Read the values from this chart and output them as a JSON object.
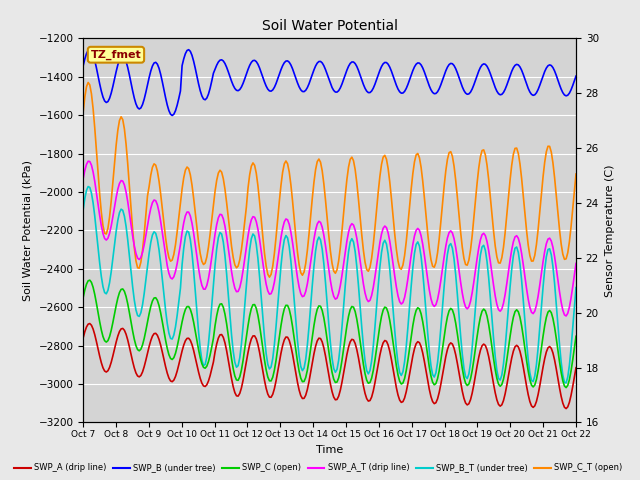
{
  "title": "Soil Water Potential",
  "ylabel_left": "Soil Water Potential (kPa)",
  "ylabel_right": "Sensor Temperature (C)",
  "xlabel": "Time",
  "ylim_left": [
    -3200,
    -1200
  ],
  "ylim_right": [
    16,
    30
  ],
  "background_color": "#e8e8e8",
  "plot_bg_color": "#d4d4d4",
  "x_labels": [
    "Oct 7",
    "Oct 8",
    "Oct 9",
    "Oct 10",
    "Oct 11",
    "Oct 12",
    "Oct 13",
    "Oct 14",
    "Oct 15",
    "Oct 16",
    "Oct 17",
    "Oct 18",
    "Oct 19",
    "Oct 20",
    "Oct 21",
    "Oct 22"
  ],
  "x_ticks": [
    0,
    1,
    2,
    3,
    4,
    5,
    6,
    7,
    8,
    9,
    10,
    11,
    12,
    13,
    14,
    15
  ],
  "yticks_left": [
    -3200,
    -3000,
    -2800,
    -2600,
    -2400,
    -2200,
    -2000,
    -1800,
    -1600,
    -1400,
    -1200
  ],
  "yticks_right": [
    16,
    18,
    20,
    22,
    24,
    26,
    28,
    30
  ],
  "annotation_text": "TZ_fmet",
  "annotation_color": "#8B0000",
  "annotation_bg": "#ffff99",
  "annotation_border": "#cc8800",
  "figsize": [
    6.4,
    4.8
  ],
  "dpi": 100
}
